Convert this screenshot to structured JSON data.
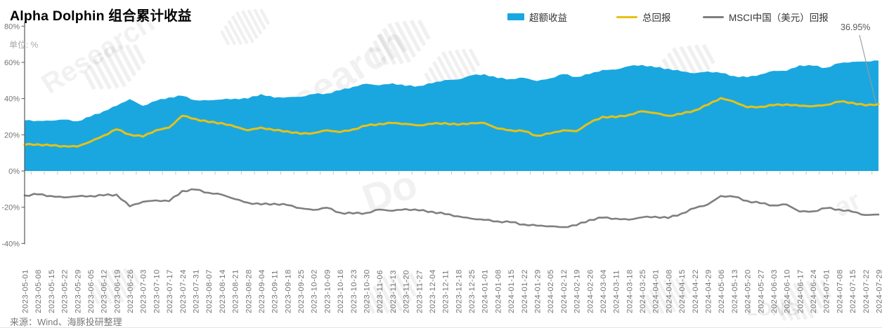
{
  "title": "Alpha Dolphin 组合累计收益",
  "unit_label": "单位: %",
  "source": "来源：Wind、海豚投研整理",
  "annotation": {
    "text": "36.95%"
  },
  "colors": {
    "excess_blue": "#1AA7E0",
    "total_yellow": "#E8C116",
    "msci_gray": "#7F7F7F",
    "axis": "#595959",
    "tick_label": "#737373"
  },
  "legend": [
    {
      "label": "超额收益",
      "type": "area",
      "color": "#1AA7E0"
    },
    {
      "label": "总回报",
      "type": "line",
      "color": "#E8C116"
    },
    {
      "label": "MSCI中国（美元）回报",
      "type": "line",
      "color": "#7F7F7F"
    }
  ],
  "chart_data": {
    "type": "area",
    "title": "Alpha Dolphin 组合累计收益",
    "ylabel": "单位: %",
    "ylim": [
      -40,
      80
    ],
    "yticks": [
      80,
      60,
      40,
      20,
      0,
      -20,
      -40
    ],
    "grid": false,
    "legend_position": "top-right",
    "x_label_rotation": -90,
    "x": [
      "2023-05-01",
      "2023-05-08",
      "2023-05-15",
      "2023-05-22",
      "2023-05-29",
      "2023-06-05",
      "2023-06-12",
      "2023-06-19",
      "2023-06-26",
      "2023-07-03",
      "2023-07-10",
      "2023-07-17",
      "2023-07-24",
      "2023-07-31",
      "2023-08-07",
      "2023-08-14",
      "2023-08-21",
      "2023-08-28",
      "2023-09-04",
      "2023-09-11",
      "2023-09-18",
      "2023-09-25",
      "2023-10-02",
      "2023-10-09",
      "2023-10-16",
      "2023-10-23",
      "2023-10-30",
      "2023-11-06",
      "2023-11-13",
      "2023-11-20",
      "2023-11-27",
      "2023-12-04",
      "2023-12-11",
      "2023-12-18",
      "2023-12-25",
      "2024-01-01",
      "2024-01-08",
      "2024-01-15",
      "2024-01-22",
      "2024-01-29",
      "2024-02-05",
      "2024-02-12",
      "2024-02-19",
      "2024-02-26",
      "2024-03-04",
      "2024-03-11",
      "2024-03-18",
      "2024-03-25",
      "2024-04-01",
      "2024-04-08",
      "2024-04-15",
      "2024-04-22",
      "2024-04-29",
      "2024-05-06",
      "2024-05-13",
      "2024-05-20",
      "2024-05-27",
      "2024-06-03",
      "2024-06-10",
      "2024-06-17",
      "2024-06-24",
      "2024-07-01",
      "2024-07-08",
      "2024-07-15",
      "2024-07-22",
      "2024-07-29"
    ],
    "series": [
      {
        "name": "超额收益",
        "type": "area",
        "color": "#1AA7E0",
        "values": [
          28.0,
          27.7,
          27.8,
          28.4,
          27.5,
          30.0,
          33.0,
          36.0,
          39.7,
          36.0,
          38.7,
          40.7,
          41.5,
          39.1,
          39.0,
          39.5,
          40.0,
          40.0,
          42.5,
          40.5,
          40.8,
          41.0,
          42.5,
          42.8,
          44.5,
          46.5,
          48.2,
          47.3,
          48.5,
          47.0,
          47.0,
          48.4,
          50.3,
          50.5,
          52.8,
          53.5,
          51.3,
          50.8,
          51.5,
          49.7,
          51.2,
          53.5,
          52.0,
          53.5,
          55.8,
          56.0,
          57.9,
          58.6,
          57.2,
          56.5,
          55.0,
          54.0,
          55.0,
          54.1,
          52.5,
          51.7,
          53.3,
          55.3,
          55.3,
          58.4,
          58.1,
          57.0,
          59.5,
          60.3,
          60.5,
          61.0
        ]
      },
      {
        "name": "总回报",
        "type": "line",
        "color": "#E8C116",
        "values": [
          14.5,
          14.8,
          14.0,
          13.8,
          13.5,
          16.2,
          19.5,
          23.0,
          20.2,
          19.0,
          22.5,
          24.0,
          30.5,
          28.8,
          27.0,
          26.5,
          24.5,
          22.5,
          24.0,
          22.5,
          22.0,
          20.5,
          21.0,
          22.5,
          21.5,
          23.0,
          25.0,
          26.0,
          26.5,
          26.0,
          25.2,
          26.0,
          26.5,
          25.5,
          26.5,
          26.5,
          23.5,
          22.5,
          22.0,
          19.5,
          20.7,
          22.5,
          22.0,
          26.5,
          30.0,
          29.7,
          31.0,
          33.0,
          32.0,
          30.5,
          31.5,
          33.5,
          36.5,
          40.3,
          38.3,
          35.2,
          35.5,
          36.3,
          36.8,
          36.0,
          35.8,
          36.5,
          38.3,
          37.8,
          36.2,
          36.95
        ]
      },
      {
        "name": "MSCI中国（美元）回报",
        "type": "line",
        "color": "#7F7F7F",
        "values": [
          -13.5,
          -12.9,
          -13.8,
          -14.6,
          -14.0,
          -13.8,
          -13.5,
          -13.0,
          -19.5,
          -17.0,
          -16.2,
          -16.7,
          -11.0,
          -10.3,
          -12.0,
          -13.0,
          -15.5,
          -17.5,
          -18.5,
          -18.0,
          -18.8,
          -20.5,
          -21.5,
          -20.3,
          -23.0,
          -23.5,
          -23.2,
          -21.3,
          -22.0,
          -21.0,
          -21.8,
          -22.4,
          -23.8,
          -25.0,
          -26.3,
          -27.0,
          -27.8,
          -28.3,
          -29.5,
          -30.2,
          -30.5,
          -31.0,
          -30.0,
          -27.0,
          -25.8,
          -26.3,
          -26.9,
          -25.6,
          -25.2,
          -26.0,
          -23.5,
          -20.5,
          -18.5,
          -13.8,
          -14.2,
          -16.5,
          -17.8,
          -19.0,
          -18.5,
          -22.4,
          -22.3,
          -20.5,
          -21.2,
          -22.5,
          -24.3,
          -24.05
        ]
      }
    ],
    "annotations": [
      {
        "text": "36.95%",
        "series": "总回报",
        "x": "2024-07-29",
        "value": 36.95
      }
    ]
  }
}
